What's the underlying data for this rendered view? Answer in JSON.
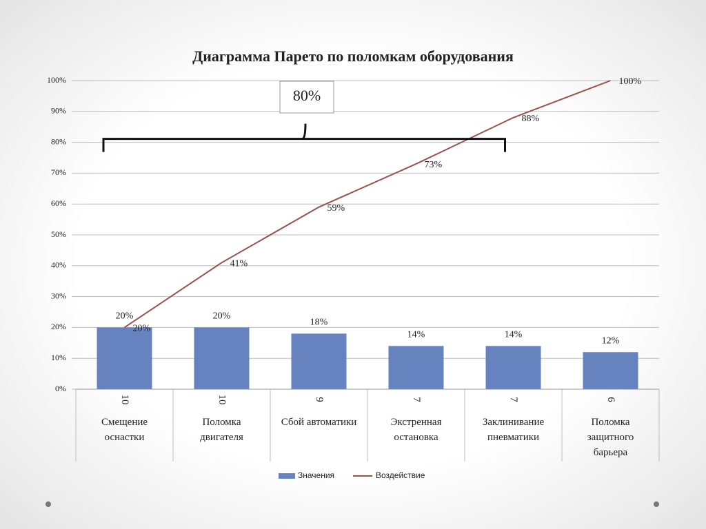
{
  "chart_data": {
    "type": "pareto",
    "title": "Диаграмма Парето по поломкам оборудования",
    "categories": [
      "Смещение\nоснастки",
      "Поломка\nдвигателя",
      "Сбой автоматики",
      "Экстренная\nостановка",
      "Заклинивание\nпневматики",
      "Поломка\nзащитного\nбарьера"
    ],
    "category_counts": [
      10,
      10,
      9,
      7,
      7,
      6
    ],
    "series": [
      {
        "name": "Значения",
        "type": "bar",
        "color": "#6682bf",
        "values": [
          20,
          20,
          18,
          14,
          14,
          12
        ],
        "value_labels": [
          "20%",
          "20%",
          "18%",
          "14%",
          "14%",
          "12%"
        ]
      },
      {
        "name": "Воздействие",
        "type": "line",
        "color": "#9c4f4b",
        "values": [
          20,
          41,
          59,
          73,
          88,
          100
        ],
        "value_labels": [
          "20%",
          "41%",
          "59%",
          "73%",
          "88%",
          "100%"
        ]
      }
    ],
    "bracket_label": "80%",
    "bracket_value": 80,
    "ylim": [
      0,
      100
    ],
    "yticks": [
      {
        "value": 0,
        "label": "0%"
      },
      {
        "value": 10,
        "label": "10%"
      },
      {
        "value": 20,
        "label": "20%"
      },
      {
        "value": 30,
        "label": "30%"
      },
      {
        "value": 40,
        "label": "40%"
      },
      {
        "value": 50,
        "label": "50%"
      },
      {
        "value": 60,
        "label": "60%"
      },
      {
        "value": 70,
        "label": "70%"
      },
      {
        "value": 80,
        "label": "80%"
      },
      {
        "value": 90,
        "label": "90%"
      },
      {
        "value": 100,
        "label": "100%"
      }
    ],
    "grid": true,
    "legend": "bottom"
  }
}
